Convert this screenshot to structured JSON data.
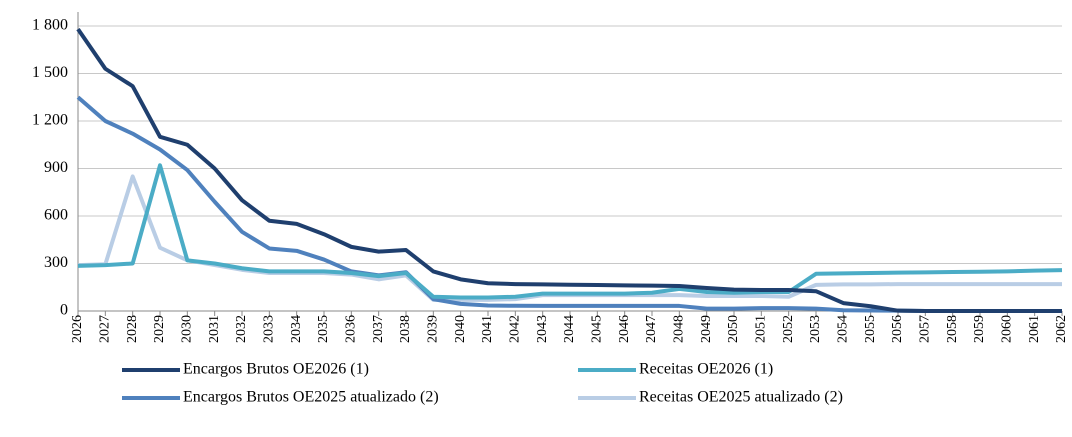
{
  "chart_data": {
    "type": "line",
    "categories": [
      "2026",
      "2027",
      "2028",
      "2029",
      "2030",
      "2031",
      "2032",
      "2033",
      "2034",
      "2035",
      "2036",
      "2037",
      "2038",
      "2039",
      "2040",
      "2041",
      "2042",
      "2043",
      "2044",
      "2045",
      "2046",
      "2047",
      "2048",
      "2049",
      "2050",
      "2051",
      "2052",
      "2053",
      "2054",
      "2055",
      "2056",
      "2057",
      "2058",
      "2059",
      "2060",
      "2061",
      "2062"
    ],
    "series": [
      {
        "name": "Encargos Brutos OE2026 (1)",
        "color": "#1f3f6e",
        "values": [
          1780,
          1530,
          1420,
          1100,
          1050,
          900,
          700,
          570,
          550,
          485,
          405,
          375,
          385,
          250,
          200,
          175,
          170,
          168,
          166,
          164,
          162,
          160,
          158,
          145,
          135,
          133,
          133,
          125,
          50,
          30,
          2,
          0,
          0,
          0,
          0,
          0,
          0
        ]
      },
      {
        "name": "Receitas OE2026 (1)",
        "color": "#4bacc6",
        "values": [
          285,
          290,
          300,
          920,
          320,
          300,
          270,
          250,
          250,
          250,
          240,
          220,
          240,
          90,
          85,
          85,
          90,
          110,
          110,
          110,
          110,
          115,
          140,
          120,
          115,
          120,
          120,
          235,
          238,
          240,
          242,
          244,
          246,
          248,
          250,
          255,
          258
        ]
      },
      {
        "name": "Encargos Brutos OE2025 atualizado (2)",
        "color": "#4f81bd",
        "values": [
          1350,
          1200,
          1120,
          1020,
          890,
          690,
          500,
          395,
          380,
          325,
          250,
          225,
          245,
          75,
          45,
          35,
          33,
          32,
          32,
          32,
          32,
          32,
          32,
          15,
          15,
          18,
          18,
          15,
          5,
          3,
          2,
          0,
          0,
          0,
          0,
          0,
          0
        ]
      },
      {
        "name": "Receitas OE2025 atualizado (2)",
        "color": "#b9cde5",
        "values": [
          290,
          295,
          850,
          400,
          320,
          290,
          260,
          240,
          240,
          240,
          230,
          200,
          225,
          70,
          70,
          70,
          75,
          100,
          100,
          100,
          100,
          100,
          100,
          95,
          95,
          95,
          90,
          165,
          168,
          168,
          170,
          170,
          170,
          170,
          170,
          170,
          170
        ]
      }
    ],
    "ylim": [
      0,
      1800
    ],
    "yticks": [
      0,
      300,
      600,
      900,
      {
        "value": 1200,
        "label": "1 200"
      },
      {
        "value": 1500,
        "label": "1 500"
      },
      {
        "value": 1800,
        "label": "1 800"
      }
    ],
    "grid": true,
    "legend": "bottom"
  }
}
